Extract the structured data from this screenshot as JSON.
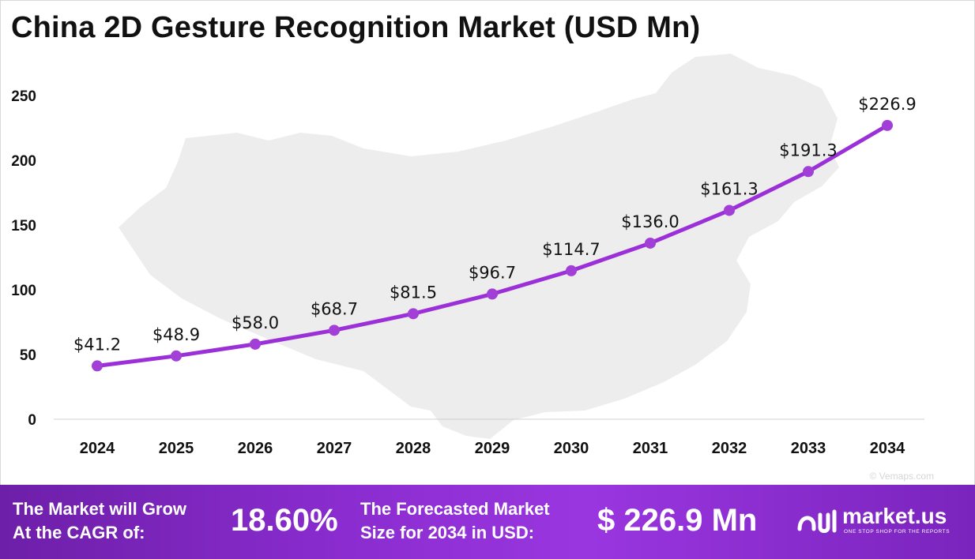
{
  "title": "China 2D Gesture Recognition Market (USD Mn)",
  "watermark": "© Vemaps.com",
  "colors": {
    "line": "#9b30d9",
    "marker": "#a23fd6",
    "map": "#ededed",
    "footer": "#8a2ccf"
  },
  "chart_data": {
    "type": "line",
    "title": "China 2D Gesture Recognition Market (USD Mn)",
    "xlabel": "",
    "ylabel": "",
    "ylim": [
      0,
      250
    ],
    "yticks": [
      0,
      50,
      100,
      150,
      200,
      250
    ],
    "grid": false,
    "legend": "none",
    "categories": [
      "2024",
      "2025",
      "2026",
      "2027",
      "2028",
      "2029",
      "2030",
      "2031",
      "2032",
      "2033",
      "2034"
    ],
    "values": [
      41.2,
      48.9,
      58.0,
      68.7,
      81.5,
      96.7,
      114.7,
      136.0,
      161.3,
      191.3,
      226.9
    ],
    "data_labels": [
      "$41.2",
      "$48.9",
      "$58.0",
      "$68.7",
      "$81.5",
      "$96.7",
      "$114.7",
      "$136.0",
      "$161.3",
      "$191.3",
      "$226.9"
    ]
  },
  "footer": {
    "cagr_text_line1": "The Market will Grow",
    "cagr_text_line2": "At the CAGR of:",
    "cagr_value": "18.60%",
    "forecast_text_line1": "The Forecasted Market",
    "forecast_text_line2": "Size for 2034 in USD:",
    "forecast_value": "$ 226.9 Mn",
    "logo_name": "market.us",
    "logo_tagline": "ONE STOP SHOP FOR THE REPORTS"
  }
}
